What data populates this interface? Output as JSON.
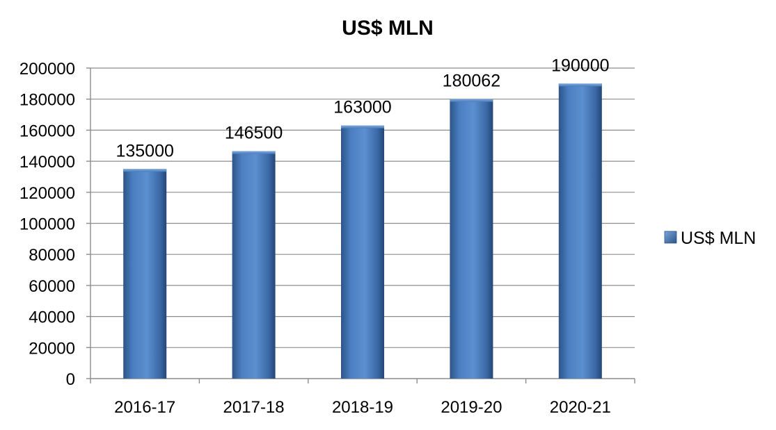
{
  "chart_data": {
    "type": "bar",
    "title": "US$ MLN",
    "categories": [
      "2016-17",
      "2017-18",
      "2018-19",
      "2019-20",
      "2020-21"
    ],
    "series": [
      {
        "name": "US$ MLN",
        "values": [
          135000,
          146500,
          163000,
          180062,
          190000
        ],
        "color": "#4a7ebb"
      }
    ],
    "data_labels": [
      "135000",
      "146500",
      "163000",
      "180062",
      "190000"
    ],
    "y_ticks": [
      "0",
      "20000",
      "40000",
      "60000",
      "80000",
      "100000",
      "120000",
      "140000",
      "160000",
      "180000",
      "200000"
    ],
    "ylim": [
      0,
      200000
    ],
    "xlabel": "",
    "ylabel": "",
    "grid": true,
    "legend_position": "right"
  }
}
